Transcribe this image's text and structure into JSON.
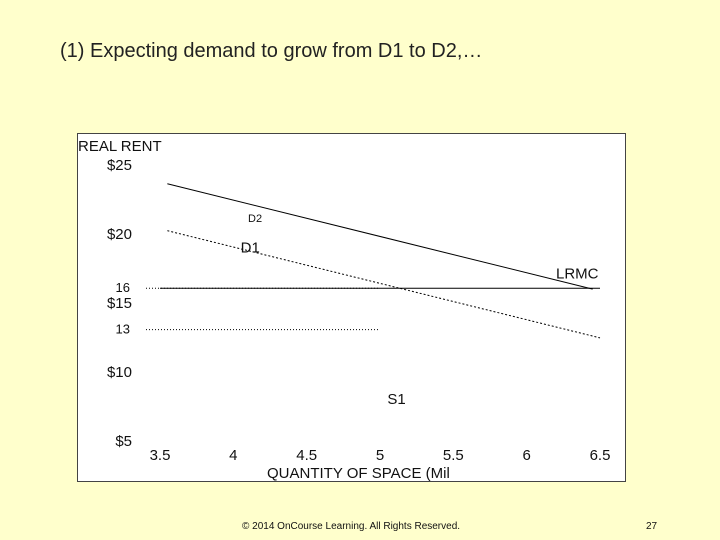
{
  "slide": {
    "title": "(1) Expecting demand to grow from D1 to D2,…",
    "footer": "© 2014 OnCourse Learning. All Rights Reserved.",
    "page_number": "27"
  },
  "chart_data": {
    "type": "line",
    "title": "",
    "ylabel": "REAL RENT",
    "xlabel": "QUANTITY OF SPACE (Mil",
    "x_ticks": [
      "3.5",
      "4",
      "4.5",
      "5",
      "5.5",
      "6",
      "6.5"
    ],
    "y_ticks": [
      "$25",
      "$20",
      "$15",
      "$10",
      "$5"
    ],
    "y_tick_values": [
      25,
      20,
      15,
      10,
      5
    ],
    "y_extra_labels": [
      {
        "label": "16",
        "value": 16
      },
      {
        "label": "13",
        "value": 13
      }
    ],
    "xlim": [
      3.5,
      6.5
    ],
    "ylim": [
      5,
      25
    ],
    "grid": false,
    "series": [
      {
        "name": "D2",
        "style": "solid",
        "color": "#000000",
        "x": [
          3.5,
          6.5
        ],
        "y": [
          23.7,
          15.8
        ]
      },
      {
        "name": "D1",
        "style": "dotted",
        "color": "#000000",
        "x": [
          3.5,
          6.5
        ],
        "y": [
          20.3,
          12.4
        ]
      },
      {
        "name": "LRMC",
        "style": "solid",
        "color": "#000000",
        "x": [
          3.5,
          6.5
        ],
        "y": [
          16,
          16
        ]
      }
    ],
    "guides": [
      {
        "y": 16,
        "from_x": 3.5,
        "to_x": 5.0
      },
      {
        "y": 13,
        "from_x": 3.5,
        "to_x": 5.0
      }
    ],
    "annotations": [
      {
        "text": "S1",
        "x": 5.05,
        "y": 7.6
      }
    ]
  }
}
